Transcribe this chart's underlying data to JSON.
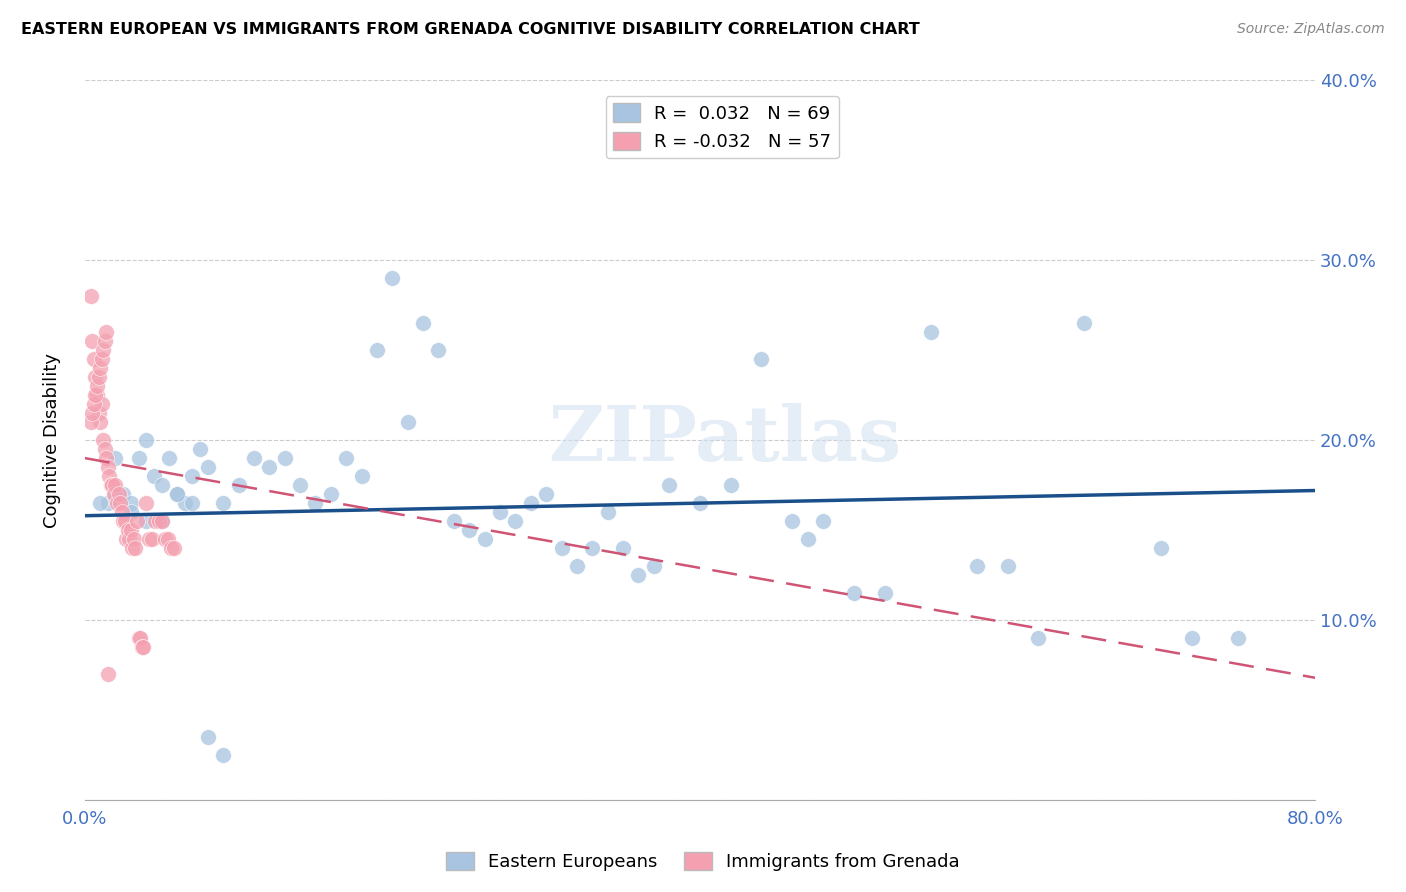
{
  "title": "EASTERN EUROPEAN VS IMMIGRANTS FROM GRENADA COGNITIVE DISABILITY CORRELATION CHART",
  "source": "Source: ZipAtlas.com",
  "ylabel": "Cognitive Disability",
  "xlim": [
    0,
    0.8
  ],
  "ylim": [
    0,
    0.4
  ],
  "blue_color": "#a8c4e0",
  "blue_line_color": "#1a4f8a",
  "pink_color": "#f4a0b0",
  "pink_line_color": "#d05575",
  "legend_blue_r": "R =  0.032",
  "legend_blue_n": "N = 69",
  "legend_pink_r": "R = -0.032",
  "legend_pink_n": "N = 57",
  "watermark": "ZIPatlas",
  "blue_line_x": [
    0.0,
    0.8
  ],
  "blue_line_y": [
    0.158,
    0.172
  ],
  "pink_line_x": [
    0.0,
    0.8
  ],
  "pink_line_y": [
    0.19,
    0.068
  ],
  "blue_scatter_x": [
    0.015,
    0.02,
    0.025,
    0.03,
    0.035,
    0.04,
    0.045,
    0.05,
    0.055,
    0.06,
    0.065,
    0.07,
    0.075,
    0.08,
    0.09,
    0.1,
    0.11,
    0.12,
    0.13,
    0.14,
    0.15,
    0.16,
    0.17,
    0.18,
    0.19,
    0.2,
    0.21,
    0.22,
    0.23,
    0.24,
    0.25,
    0.26,
    0.27,
    0.28,
    0.29,
    0.3,
    0.31,
    0.32,
    0.33,
    0.34,
    0.35,
    0.36,
    0.37,
    0.38,
    0.4,
    0.42,
    0.44,
    0.46,
    0.47,
    0.48,
    0.5,
    0.52,
    0.55,
    0.58,
    0.6,
    0.62,
    0.65,
    0.7,
    0.72,
    0.75,
    0.01,
    0.02,
    0.03,
    0.04,
    0.05,
    0.06,
    0.07,
    0.08,
    0.09
  ],
  "blue_scatter_y": [
    0.165,
    0.17,
    0.17,
    0.165,
    0.19,
    0.2,
    0.18,
    0.175,
    0.19,
    0.17,
    0.165,
    0.165,
    0.195,
    0.185,
    0.165,
    0.175,
    0.19,
    0.185,
    0.19,
    0.175,
    0.165,
    0.17,
    0.19,
    0.18,
    0.25,
    0.29,
    0.21,
    0.265,
    0.25,
    0.155,
    0.15,
    0.145,
    0.16,
    0.155,
    0.165,
    0.17,
    0.14,
    0.13,
    0.14,
    0.16,
    0.14,
    0.125,
    0.13,
    0.175,
    0.165,
    0.175,
    0.245,
    0.155,
    0.145,
    0.155,
    0.115,
    0.115,
    0.26,
    0.13,
    0.13,
    0.09,
    0.265,
    0.14,
    0.09,
    0.09,
    0.165,
    0.19,
    0.16,
    0.155,
    0.155,
    0.17,
    0.18,
    0.035,
    0.025
  ],
  "pink_scatter_x": [
    0.004,
    0.005,
    0.006,
    0.007,
    0.008,
    0.009,
    0.01,
    0.011,
    0.012,
    0.013,
    0.014,
    0.015,
    0.016,
    0.017,
    0.018,
    0.019,
    0.02,
    0.021,
    0.022,
    0.023,
    0.024,
    0.025,
    0.026,
    0.027,
    0.028,
    0.029,
    0.03,
    0.031,
    0.032,
    0.033,
    0.034,
    0.035,
    0.036,
    0.037,
    0.038,
    0.04,
    0.042,
    0.044,
    0.046,
    0.048,
    0.05,
    0.052,
    0.054,
    0.056,
    0.058,
    0.004,
    0.005,
    0.006,
    0.007,
    0.008,
    0.009,
    0.01,
    0.011,
    0.012,
    0.013,
    0.014,
    0.015
  ],
  "pink_scatter_y": [
    0.28,
    0.255,
    0.245,
    0.235,
    0.225,
    0.215,
    0.21,
    0.22,
    0.2,
    0.195,
    0.19,
    0.185,
    0.18,
    0.175,
    0.175,
    0.17,
    0.175,
    0.165,
    0.17,
    0.165,
    0.16,
    0.155,
    0.155,
    0.145,
    0.15,
    0.145,
    0.15,
    0.14,
    0.145,
    0.14,
    0.155,
    0.09,
    0.09,
    0.085,
    0.085,
    0.165,
    0.145,
    0.145,
    0.155,
    0.155,
    0.155,
    0.145,
    0.145,
    0.14,
    0.14,
    0.21,
    0.215,
    0.22,
    0.225,
    0.23,
    0.235,
    0.24,
    0.245,
    0.25,
    0.255,
    0.26,
    0.07
  ]
}
